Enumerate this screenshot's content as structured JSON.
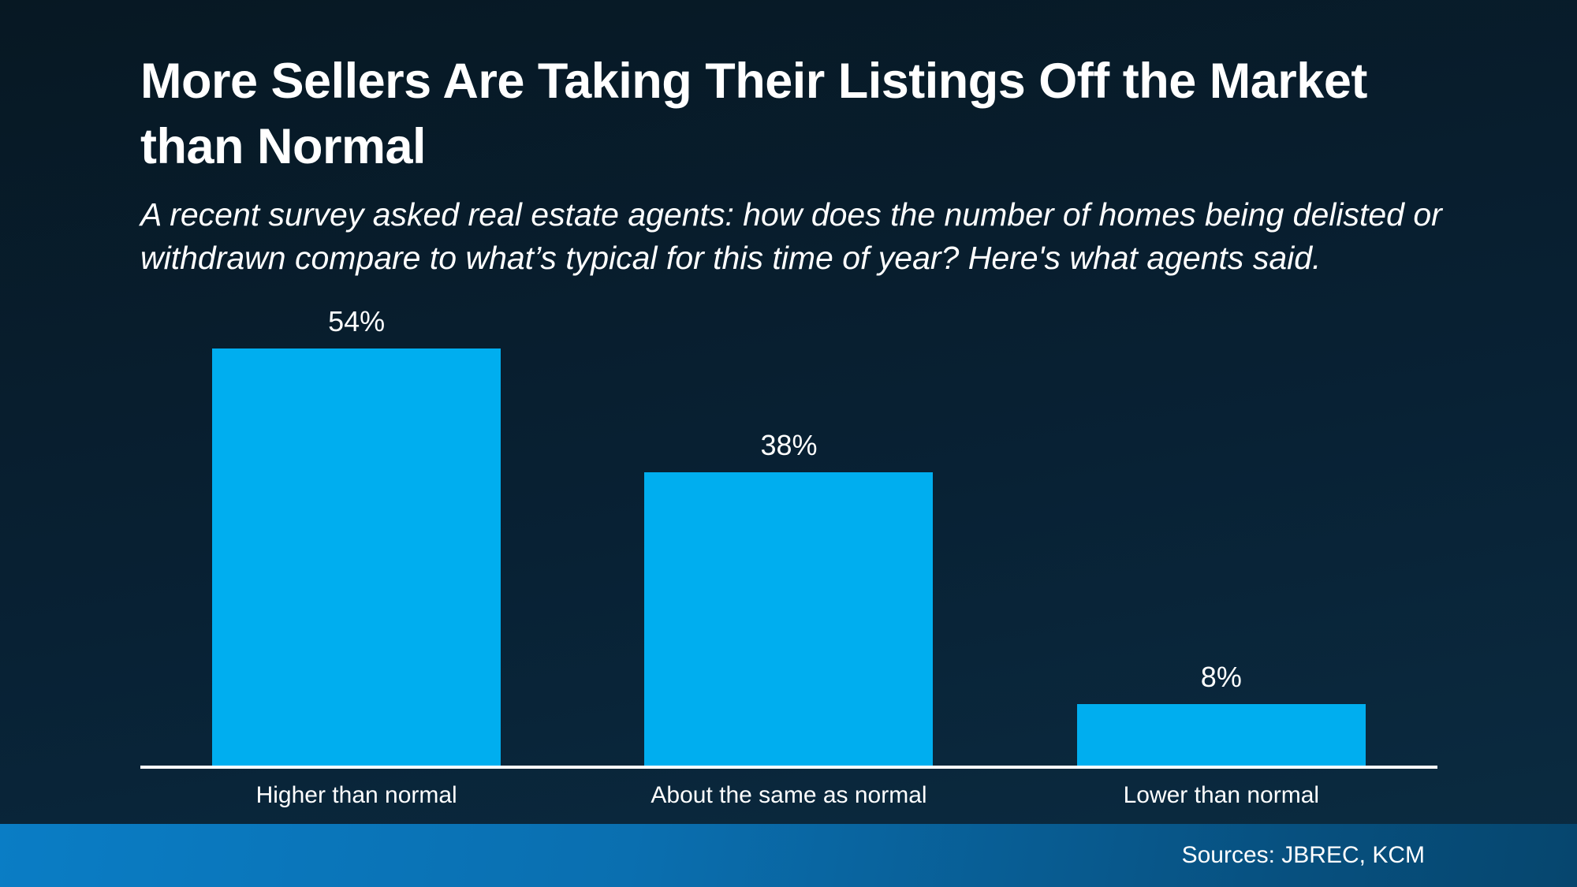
{
  "header": {
    "title": "More Sellers Are Taking Their Listings Off the Market than Normal",
    "subtitle": "A recent survey asked real estate agents: how does the number of homes being delisted or withdrawn compare to what’s typical for this time of year? Here's what agents said."
  },
  "chart_data": {
    "type": "bar",
    "categories": [
      "Higher than normal",
      "About the same as normal",
      "Lower than normal"
    ],
    "values": [
      54,
      38,
      8
    ],
    "value_labels": [
      "54%",
      "38%",
      "8%"
    ],
    "title": "",
    "xlabel": "",
    "ylabel": "",
    "ylim": [
      0,
      60
    ],
    "grid": false,
    "legend": false,
    "bar_color": "#00aeef",
    "axis_line_color": "#ffffff"
  },
  "footer": {
    "sources": "Sources: JBREC, KCM"
  },
  "colors": {
    "background_top": "#071823",
    "background_bottom": "#0b2c42",
    "bar": "#00aeef",
    "axis": "#ffffff",
    "footer_gradient_left": "#0a7dc5",
    "footer_gradient_right": "#06466e",
    "text": "#ffffff"
  }
}
